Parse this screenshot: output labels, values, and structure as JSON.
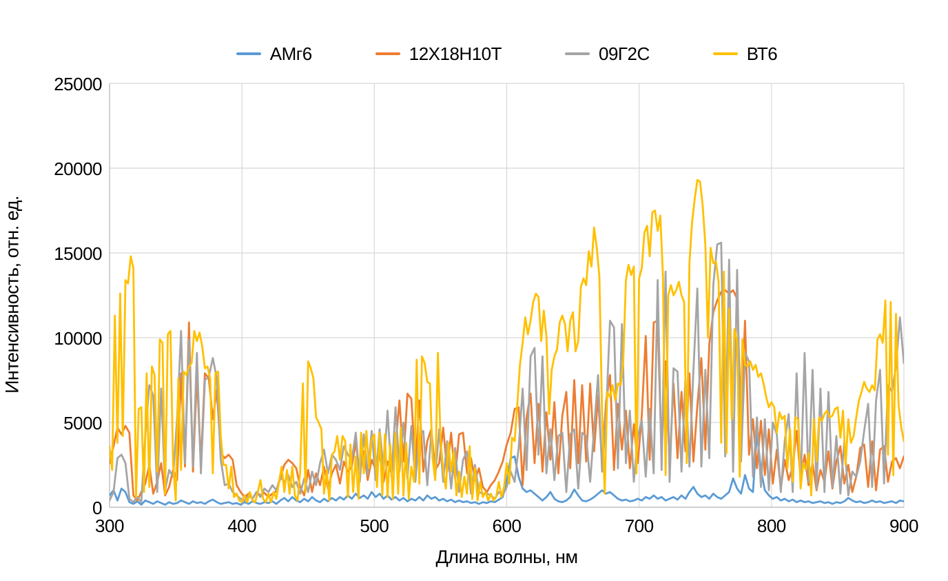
{
  "chart_data": {
    "type": "line",
    "title": "",
    "xlabel": "Длина волны, нм",
    "ylabel": "Интенсивность, отн. ед.",
    "xlim": [
      300,
      900
    ],
    "ylim": [
      0,
      25000
    ],
    "xticks": [
      300,
      400,
      500,
      600,
      700,
      800,
      900
    ],
    "yticks": [
      0,
      5000,
      10000,
      15000,
      20000,
      25000
    ],
    "grid": true,
    "legend_position": "top",
    "series": [
      {
        "name": "АМг6",
        "color": "#5B9BD5",
        "x_start": 300,
        "x_step": 3,
        "values": [
          700,
          1000,
          400,
          1100,
          900,
          300,
          200,
          350,
          150,
          400,
          300,
          200,
          350,
          250,
          150,
          300,
          200,
          250,
          400,
          300,
          200,
          350,
          250,
          300,
          200,
          350,
          450,
          300,
          200,
          250,
          300,
          200,
          250,
          150,
          300,
          200,
          350,
          250,
          200,
          300,
          250,
          350,
          200,
          400,
          550,
          350,
          600,
          400,
          300,
          500,
          350,
          600,
          400,
          300,
          500,
          350,
          550,
          400,
          600,
          450,
          700,
          500,
          800,
          550,
          700,
          500,
          900,
          600,
          800,
          500,
          700,
          450,
          600,
          400,
          550,
          350,
          500,
          400,
          600,
          400,
          700,
          500,
          600,
          400,
          500,
          350,
          450,
          300,
          400,
          300,
          350,
          250,
          300,
          200,
          300,
          250,
          350,
          300,
          450,
          600,
          1600,
          2900,
          3000,
          1800,
          1100,
          900,
          1000,
          800,
          600,
          400,
          600,
          900,
          500,
          350,
          300,
          400,
          600,
          1050,
          700,
          400,
          350,
          450,
          600,
          800,
          1000,
          800,
          900,
          700,
          500,
          400,
          450,
          350,
          400,
          500,
          400,
          600,
          500,
          700,
          500,
          600,
          400,
          500,
          600,
          450,
          700,
          500,
          900,
          1200,
          800,
          600,
          700,
          500,
          800,
          600,
          500,
          700,
          900,
          1700,
          1100,
          800,
          1900,
          1100,
          900,
          4400,
          2200,
          1000,
          700,
          500,
          600,
          400,
          500,
          350,
          450,
          300,
          400,
          300,
          350,
          250,
          300,
          350,
          250,
          300,
          200,
          300,
          250,
          350,
          550,
          400,
          300,
          350,
          250,
          300,
          400,
          300,
          350,
          250,
          300,
          350,
          250,
          400,
          350
        ]
      },
      {
        "name": "12Х18Н10Т",
        "color": "#ED7D31",
        "x_start": 300,
        "x_step": 3,
        "values": [
          2600,
          3600,
          4700,
          4300,
          4800,
          4400,
          700,
          400,
          900,
          1400,
          2500,
          800,
          1500,
          2600,
          700,
          1200,
          2200,
          1600,
          7900,
          2400,
          10900,
          2100,
          7800,
          2600,
          7900,
          7600,
          5200,
          6900,
          3200,
          2900,
          3100,
          2800,
          1300,
          900,
          600,
          800,
          500,
          900,
          700,
          850,
          600,
          800,
          950,
          1700,
          2500,
          2800,
          2600,
          2300,
          1200,
          700,
          2200,
          900,
          2000,
          1300,
          2400,
          1100,
          2000,
          2500,
          1400,
          2700,
          2100,
          2400,
          3800,
          2000,
          3300,
          1600,
          2800,
          2200,
          3100,
          1500,
          2700,
          2000,
          3600,
          6300,
          2700,
          6700,
          6400,
          2400,
          6300,
          2100,
          3900,
          4600,
          2200,
          2600,
          4700,
          2100,
          4400,
          1700,
          4300,
          4400,
          2000,
          2900,
          1600,
          2300,
          1200,
          900,
          1300,
          1600,
          2100,
          2700,
          3700,
          4400,
          5800,
          5900,
          1300,
          5300,
          6700,
          2600,
          6100,
          2100,
          5600,
          2800,
          6200,
          2000,
          5400,
          6800,
          2300,
          7500,
          2600,
          7200,
          2700,
          7300,
          3300,
          6600,
          2500,
          6200,
          7800,
          2200,
          6100,
          3400,
          5700,
          2300,
          4900,
          2600,
          5400,
          10100,
          2800,
          10900,
          11000,
          3100,
          8600,
          2500,
          7300,
          2900,
          6800,
          3300,
          7900,
          2700,
          6000,
          8800,
          3400,
          9600,
          11500,
          12200,
          12700,
          12800,
          12600,
          12800,
          12300,
          5200,
          11000,
          3100,
          5200,
          2300,
          5100,
          1900,
          4600,
          1400,
          3400,
          1100,
          2800,
          1600,
          2400,
          4500,
          1700,
          3100,
          1300,
          2600,
          1000,
          2200,
          1500,
          3300,
          1100,
          2700,
          3600,
          1400,
          2500,
          900,
          1800,
          3500,
          3700,
          1200,
          3900,
          1000,
          3400,
          3600,
          1500,
          2700,
          2900,
          2300,
          3000
        ]
      },
      {
        "name": "09Г2С",
        "color": "#A5A5A5",
        "x_start": 300,
        "x_step": 3,
        "values": [
          400,
          900,
          2900,
          3100,
          2600,
          500,
          300,
          600,
          300,
          4200,
          7200,
          6600,
          900,
          7000,
          1000,
          2200,
          1800,
          5200,
          10400,
          2600,
          9900,
          2400,
          9100,
          2000,
          7500,
          7700,
          8800,
          7600,
          2800,
          1300,
          1400,
          900,
          700,
          500,
          400,
          700,
          500,
          900,
          600,
          1100,
          900,
          1300,
          1000,
          1800,
          1500,
          1900,
          1200,
          1500,
          800,
          1700,
          900,
          2100,
          1300,
          2600,
          3400,
          2000,
          3100,
          2800,
          2200,
          3600,
          3100,
          2800,
          4400,
          1500,
          4300,
          1900,
          4500,
          1600,
          4600,
          2200,
          5700,
          1800,
          5900,
          2100,
          5000,
          1700,
          4800,
          1500,
          4300,
          4500,
          1300,
          4400,
          1800,
          4600,
          1500,
          3900,
          1100,
          3500,
          900,
          2800,
          3300,
          800,
          2500,
          900,
          800,
          800,
          700,
          500,
          900,
          700,
          1200,
          2100,
          1500,
          3500,
          7000,
          2200,
          8900,
          9400,
          3100,
          8900,
          2000,
          4600,
          1600,
          4200,
          4400,
          900,
          4300,
          4600,
          1100,
          4400,
          4200,
          1500,
          4600,
          7800,
          2100,
          5400,
          11000,
          10600,
          2300,
          10800,
          2600,
          5700,
          1500,
          4200,
          5100,
          1800,
          5800,
          2000,
          13400,
          2200,
          13900,
          1500,
          8200,
          8000,
          2100,
          7600,
          2400,
          8100,
          12900,
          2400,
          8100,
          2900,
          13100,
          15500,
          15600,
          3000,
          14600,
          2100,
          14000,
          2700,
          9100,
          8600,
          1800,
          5300,
          1200,
          5200,
          1000,
          5000,
          4300,
          900,
          3900,
          5500,
          900,
          7900,
          1300,
          9100,
          1500,
          8100,
          1100,
          7000,
          900,
          6800,
          1200,
          4200,
          800,
          3900,
          700,
          2100,
          1800,
          2700,
          4500,
          6100,
          1200,
          6300,
          8100,
          1400,
          7200,
          6800,
          8300,
          11200,
          8500
        ]
      },
      {
        "name": "ВТ6",
        "color": "#FFC000",
        "x_start": 300,
        "x_step": 2,
        "values": [
          3600,
          2200,
          11300,
          3800,
          12600,
          4200,
          13400,
          13200,
          14800,
          14100,
          600,
          5800,
          5900,
          900,
          7900,
          1200,
          8300,
          7800,
          2100,
          9900,
          9700,
          800,
          10200,
          10400,
          2600,
          400,
          7600,
          2200,
          8000,
          7800,
          8300,
          8500,
          10400,
          9800,
          10300,
          9500,
          8200,
          8300,
          7600,
          2000,
          7900,
          8000,
          4200,
          2500,
          2500,
          1100,
          2400,
          600,
          800,
          400,
          300,
          700,
          300,
          900,
          400,
          300,
          900,
          1600,
          500,
          300,
          800,
          300,
          900,
          500,
          1500,
          2400,
          900,
          2200,
          800,
          2400,
          700,
          400,
          2100,
          7300,
          900,
          8600,
          8200,
          7600,
          5300,
          5000,
          4600,
          800,
          2200,
          400,
          3100,
          3300,
          4200,
          2800,
          4200,
          3900,
          600,
          3700,
          900,
          3000,
          500,
          4400,
          2000,
          4500,
          2300,
          4000,
          4300,
          1200,
          4400,
          700,
          4300,
          600,
          3700,
          500,
          4400,
          800,
          4700,
          700,
          3800,
          500,
          2400,
          1500,
          8700,
          1400,
          8900,
          8500,
          7400,
          7300,
          2900,
          1600,
          9100,
          4000,
          2200,
          1100,
          3800,
          2100,
          3300,
          700,
          2100,
          600,
          1800,
          800,
          3600,
          500,
          2300,
          400,
          1500,
          600,
          900,
          400,
          800,
          400,
          600,
          1500,
          600,
          1200,
          2600,
          1400,
          4100,
          3900,
          6100,
          8400,
          9700,
          11200,
          10200,
          11000,
          12100,
          12600,
          12400,
          9800,
          11600,
          10100,
          5500,
          8100,
          8900,
          9300,
          10900,
          11300,
          10800,
          9200,
          11000,
          11500,
          9200,
          9800,
          13000,
          13500,
          13100,
          15100,
          14200,
          16500,
          15300,
          13600,
          5600,
          800,
          6800,
          6500,
          7200,
          6300,
          7300,
          7200,
          8600,
          13400,
          14300,
          13700,
          14200,
          2000,
          13500,
          14100,
          16200,
          16600,
          14800,
          17400,
          17500,
          16300,
          17200,
          13600,
          1900,
          12500,
          13100,
          12500,
          12800,
          13300,
          12500,
          12100,
          2600,
          14400,
          16800,
          18200,
          19300,
          19200,
          17800,
          15500,
          10000,
          15300,
          14400,
          14500,
          13300,
          3800,
          13900,
          3200,
          11700,
          5200,
          10500,
          9800,
          1800,
          9900,
          8400,
          8300,
          8600,
          8100,
          8400,
          7700,
          7900,
          7300,
          6500,
          5900,
          6200,
          5900,
          4400,
          5600,
          5200,
          5400,
          2300,
          4600,
          1500,
          5300,
          5200,
          1100,
          2600,
          2200,
          3200,
          700,
          5200,
          2700,
          5300,
          5100,
          5500,
          5700,
          5300,
          5400,
          5800,
          5900,
          4100,
          5700,
          2500,
          5200,
          3800,
          4200,
          5300,
          6300,
          6800,
          7400,
          7000,
          6800,
          7200,
          6900,
          9900,
          10200,
          9700,
          12200,
          3100,
          12100,
          1900,
          11400,
          6000,
          4700,
          3900
        ]
      }
    ]
  }
}
